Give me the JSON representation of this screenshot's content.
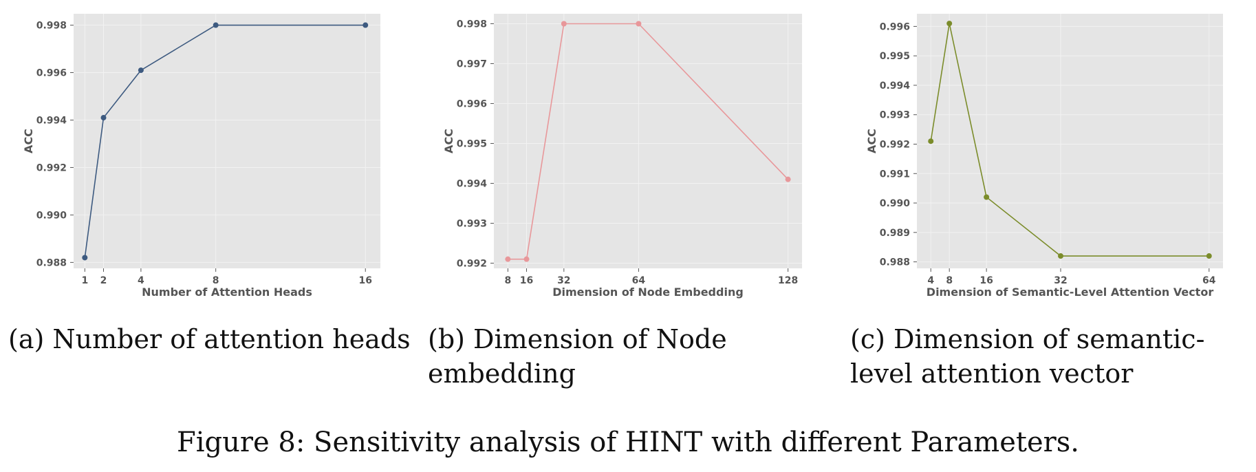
{
  "chart_data": [
    {
      "type": "line",
      "xlabel": "Number of Attention Heads",
      "ylabel": "ACC",
      "x": [
        1,
        2,
        4,
        8,
        16
      ],
      "xticks": [
        "1",
        "2",
        "4",
        "8",
        "16"
      ],
      "y": [
        0.9882,
        0.9941,
        0.9961,
        0.998,
        0.998
      ],
      "yticks": [
        "0.988",
        "0.990",
        "0.992",
        "0.994",
        "0.996",
        "0.998"
      ],
      "xlim": [
        0.4,
        16.8
      ],
      "ylim": [
        0.98775,
        0.99848
      ],
      "color": "#3d5a80",
      "grid": true,
      "caption": "(a) Number of attention heads"
    },
    {
      "type": "line",
      "xlabel": "Dimension of Node Embedding",
      "ylabel": "ACC",
      "x": [
        8,
        16,
        32,
        64,
        128
      ],
      "xticks": [
        "8",
        "16",
        "32",
        "64",
        "128"
      ],
      "y": [
        0.9921,
        0.9921,
        0.998,
        0.998,
        0.9941
      ],
      "yticks": [
        "0.992",
        "0.993",
        "0.994",
        "0.995",
        "0.996",
        "0.997",
        "0.998"
      ],
      "xlim": [
        2,
        134
      ],
      "ylim": [
        0.99187,
        0.99825
      ],
      "color": "#e8979a",
      "grid": true,
      "caption": "(b) Dimension of Node embedding"
    },
    {
      "type": "line",
      "xlabel": "Dimension of Semantic-Level Attention Vector",
      "ylabel": "ACC",
      "x": [
        4,
        8,
        16,
        32,
        64
      ],
      "xticks": [
        "4",
        "8",
        "16",
        "32",
        "64"
      ],
      "y": [
        0.9921,
        0.9961,
        0.9902,
        0.9882,
        0.9882
      ],
      "yticks": [
        "0.988",
        "0.989",
        "0.990",
        "0.991",
        "0.992",
        "0.993",
        "0.994",
        "0.995",
        "0.996"
      ],
      "xlim": [
        1,
        67
      ],
      "ylim": [
        0.98778,
        0.99643
      ],
      "color": "#7b8c2a",
      "grid": true,
      "caption": "(c) Dimension of semantic-level attention vector"
    }
  ],
  "figure_caption": "Figure 8: Sensitivity analysis of HINT with different Parameters."
}
